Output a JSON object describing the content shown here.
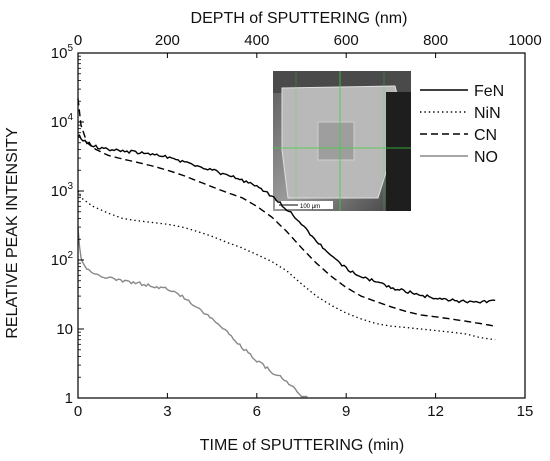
{
  "chart_data": {
    "type": "line",
    "xlabel": "TIME of SPUTTERING (min)",
    "x2label": "DEPTH of SPUTTERING (nm)",
    "ylabel": "RELATIVE PEAK INTENSITY",
    "xlim": [
      0,
      15
    ],
    "x2lim": [
      0,
      1000
    ],
    "ylim": [
      1,
      100000
    ],
    "yscale": "log",
    "xticks": [
      0,
      3,
      6,
      9,
      12,
      15
    ],
    "xtick_labels": [
      "0",
      "3",
      "6",
      "9",
      "12",
      "15"
    ],
    "x2ticks": [
      0,
      200,
      400,
      600,
      800,
      1000
    ],
    "x2tick_labels": [
      "0",
      "200",
      "400",
      "600",
      "800",
      "1000"
    ],
    "yticks": [
      1,
      10,
      100,
      1000,
      10000,
      100000
    ],
    "ytick_labels": [
      {
        "base": "1",
        "exp": ""
      },
      {
        "base": "10",
        "exp": ""
      },
      {
        "base": "10",
        "exp": "2"
      },
      {
        "base": "10",
        "exp": "3"
      },
      {
        "base": "10",
        "exp": "4"
      },
      {
        "base": "10",
        "exp": "5"
      }
    ],
    "legend_position": "top-right",
    "inset": {
      "description_label": "100 µm"
    },
    "series": [
      {
        "name": "FeN",
        "color": "#000000",
        "dash": "solid",
        "x": [
          0,
          0.1,
          0.3,
          0.6,
          1,
          1.5,
          2,
          2.5,
          3,
          3.5,
          4,
          4.5,
          5,
          5.5,
          6,
          6.5,
          7,
          7.5,
          8,
          8.5,
          9,
          9.5,
          10,
          10.5,
          11,
          11.5,
          12,
          12.5,
          13,
          13.5,
          14
        ],
        "y": [
          6500,
          5800,
          5000,
          4400,
          4000,
          3800,
          3600,
          3400,
          3100,
          2700,
          2300,
          2000,
          1700,
          1450,
          1150,
          850,
          550,
          330,
          190,
          115,
          75,
          58,
          48,
          40,
          35,
          31,
          28,
          26,
          25,
          24,
          26
        ]
      },
      {
        "name": "NiN",
        "color": "#000000",
        "dash": "dotted",
        "x": [
          0,
          0.1,
          0.5,
          1,
          1.5,
          2,
          2.5,
          3,
          3.5,
          4,
          4.5,
          5,
          5.5,
          6,
          6.5,
          7,
          7.5,
          8,
          8.5,
          9,
          9.5,
          10,
          10.5,
          11,
          11.5,
          12,
          12.5,
          13,
          13.5,
          14
        ],
        "y": [
          1000,
          800,
          600,
          480,
          400,
          370,
          350,
          330,
          300,
          260,
          220,
          180,
          150,
          120,
          95,
          70,
          45,
          30,
          22,
          17,
          14,
          12,
          11,
          10.5,
          10,
          9.5,
          9,
          8.5,
          7.5,
          7
        ]
      },
      {
        "name": "CN",
        "color": "#000000",
        "dash": "dashed",
        "x": [
          0,
          0.1,
          0.3,
          0.6,
          1,
          1.5,
          2,
          2.5,
          3,
          3.5,
          4,
          4.5,
          5,
          5.5,
          6,
          6.5,
          7,
          7.5,
          8,
          8.5,
          9,
          9.5,
          10,
          10.5,
          11,
          11.5,
          12,
          12.5,
          13,
          13.5,
          14
        ],
        "y": [
          22000,
          9000,
          5000,
          4000,
          3300,
          2900,
          2600,
          2300,
          2000,
          1700,
          1400,
          1150,
          950,
          800,
          600,
          420,
          260,
          150,
          90,
          58,
          40,
          30,
          25,
          21,
          18,
          16,
          15,
          14,
          13,
          12,
          11
        ]
      },
      {
        "name": "NO",
        "color": "#888888",
        "dash": "solid",
        "x": [
          0,
          0.05,
          0.1,
          0.2,
          0.3,
          0.5,
          0.8,
          1,
          1.5,
          2,
          2.5,
          3,
          3.5,
          4,
          4.5,
          5,
          5.5,
          6,
          6.5,
          7,
          7.3,
          7.5,
          7.7
        ],
        "y": [
          300,
          160,
          110,
          85,
          75,
          65,
          58,
          55,
          50,
          46,
          42,
          38,
          30,
          20,
          14,
          9,
          5.5,
          3.5,
          2.4,
          1.8,
          1.3,
          1,
          1.05
        ]
      }
    ]
  }
}
